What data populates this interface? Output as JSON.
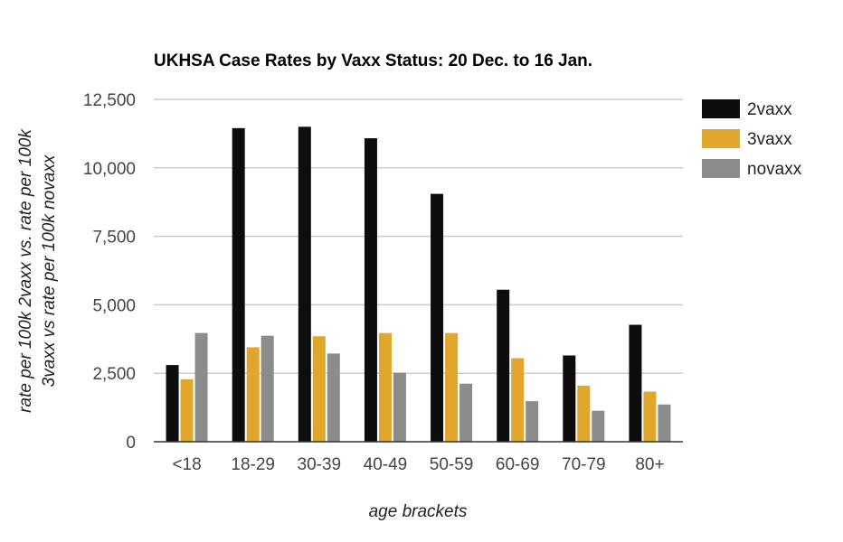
{
  "chart_data": {
    "type": "bar",
    "title": "UKHSA Case Rates by Vaxx Status: 20 Dec. to 16 Jan.",
    "xlabel": "age brackets",
    "ylabel": [
      "rate per 100k 2vaxx vs. rate per 100k",
      "3vaxx vs rate per 100k novaxx"
    ],
    "categories": [
      "<18",
      "18-29",
      "30-39",
      "40-49",
      "50-59",
      "60-69",
      "70-79",
      "80+"
    ],
    "ylim": [
      0,
      12500
    ],
    "yticks": [
      0,
      2500,
      5000,
      7500,
      10000,
      12500
    ],
    "ytick_labels": [
      "0",
      "2,500",
      "5,000",
      "7,500",
      "10,000",
      "12,500"
    ],
    "grid": true,
    "legend_position": "right",
    "series": [
      {
        "name": "2vaxx",
        "color": "#0d0d0d",
        "values": [
          2800,
          11450,
          11500,
          11080,
          9050,
          5550,
          3150,
          4270
        ]
      },
      {
        "name": "3vaxx",
        "color": "#e1a72c",
        "values": [
          2280,
          3450,
          3850,
          3970,
          3970,
          3050,
          2050,
          1830
        ]
      },
      {
        "name": "novaxx",
        "color": "#8c8c8c",
        "values": [
          3970,
          3870,
          3220,
          2520,
          2120,
          1480,
          1130,
          1360
        ]
      }
    ]
  }
}
